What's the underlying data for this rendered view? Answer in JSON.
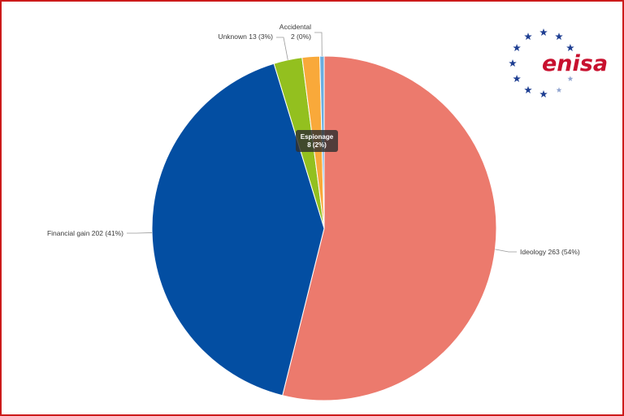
{
  "colors": {
    "border": "#cc1b1b",
    "logo_text": "#c8102e",
    "logo_stars_dark": "#1f3f92",
    "logo_stars_light": "#8fa3cf"
  },
  "logo": {
    "text": "enisa",
    "icon": "eu-stars-icon"
  },
  "chart_data": {
    "type": "pie",
    "title": "",
    "start_angle_deg": 0,
    "direction": "clockwise",
    "slices": [
      {
        "name": "Ideology",
        "value": 263,
        "percent": "54%",
        "label": "Ideology 263 (54%)",
        "color": "#ec7a6d"
      },
      {
        "name": "Financial gain",
        "value": 202,
        "percent": "41%",
        "label": "Financial gain 202 (41%)",
        "color": "#034ea2"
      },
      {
        "name": "Unknown",
        "value": 13,
        "percent": "3%",
        "label": "Unknown 13 (3%)",
        "color": "#93c01f"
      },
      {
        "name": "Espionage",
        "value": 8,
        "percent": "2%",
        "label": "Espionage 8 (2%)",
        "color": "#f9a93a"
      },
      {
        "name": "Accidental",
        "value": 2,
        "percent": "0%",
        "label": "Accidental 2 (0%)",
        "label_lines": [
          "Accidental",
          "2 (0%)"
        ],
        "color": "#6aaee0"
      }
    ],
    "tooltip": {
      "slice": "Espionage",
      "lines": [
        "Espionage",
        "8 (2%)"
      ]
    }
  }
}
